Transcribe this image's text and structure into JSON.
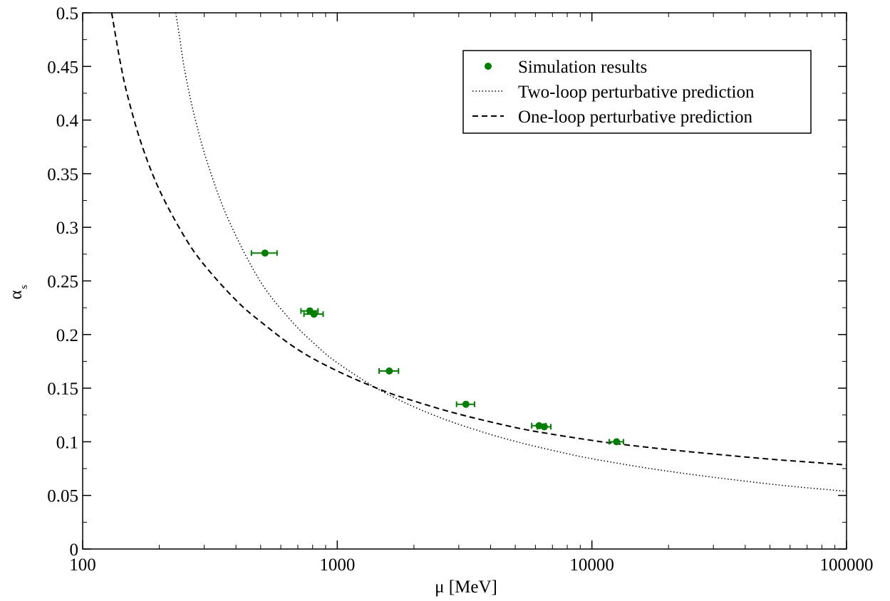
{
  "chart_data": {
    "type": "line",
    "title": "",
    "xlabel": "μ [MeV]",
    "ylabel_main": "α",
    "ylabel_sub": "s",
    "xscale": "log",
    "xlim": [
      100,
      100000
    ],
    "ylim": [
      0,
      0.5
    ],
    "xticks": [
      100,
      1000,
      10000,
      100000
    ],
    "xtick_labels": [
      "100",
      "1000",
      "10000",
      "100000"
    ],
    "yticks": [
      0,
      0.05,
      0.1,
      0.15,
      0.2,
      0.25,
      0.3,
      0.35,
      0.4,
      0.45,
      0.5
    ],
    "ytick_labels": [
      "0",
      "0.05",
      "0.1",
      "0.15",
      "0.2",
      "0.25",
      "0.3",
      "0.35",
      "0.4",
      "0.45",
      "0.5"
    ],
    "grid": false,
    "legend_position": "top-right",
    "legend": [
      {
        "label": "Simulation results",
        "style": "marker"
      },
      {
        "label": "Two-loop perturbative prediction",
        "style": "dotted"
      },
      {
        "label": "One-loop perturbative prediction",
        "style": "dashed"
      }
    ],
    "series": [
      {
        "name": "Simulation results",
        "kind": "points",
        "color": "#008000",
        "points": [
          {
            "x": 520,
            "y": 0.276,
            "xerr": 60
          },
          {
            "x": 780,
            "y": 0.222,
            "xerr": 60
          },
          {
            "x": 810,
            "y": 0.219,
            "xerr": 70
          },
          {
            "x": 1600,
            "y": 0.166,
            "xerr": 140
          },
          {
            "x": 3200,
            "y": 0.135,
            "xerr": 260
          },
          {
            "x": 6200,
            "y": 0.115,
            "xerr": 400
          },
          {
            "x": 6500,
            "y": 0.114,
            "xerr": 400
          },
          {
            "x": 12500,
            "y": 0.1,
            "xerr": 800
          }
        ]
      },
      {
        "name": "Two-loop perturbative prediction",
        "kind": "line",
        "style": "dotted",
        "color": "#000000",
        "x": [
          232,
          240,
          250,
          265,
          280,
          300,
          330,
          360,
          400,
          450,
          500,
          550,
          600,
          700,
          800,
          900,
          1000,
          1200,
          1500,
          2000,
          2500,
          3000,
          4000,
          5000,
          6000,
          8000,
          10000,
          15000,
          20000,
          30000,
          50000,
          70000,
          100000
        ],
        "y": [
          0.5,
          0.478,
          0.45,
          0.42,
          0.396,
          0.37,
          0.34,
          0.316,
          0.292,
          0.268,
          0.249,
          0.235,
          0.224,
          0.206,
          0.193,
          0.182,
          0.1737,
          0.161,
          0.147,
          0.1326,
          0.1231,
          0.1163,
          0.1068,
          0.1004,
          0.0957,
          0.0889,
          0.0842,
          0.077,
          0.0725,
          0.0669,
          0.0606,
          0.0571,
          0.0539
        ]
      },
      {
        "name": "One-loop perturbative prediction",
        "kind": "line",
        "style": "dashed",
        "color": "#000000",
        "x": [
          130,
          140,
          150,
          170,
          200,
          250,
          300,
          400,
          500,
          700,
          1000,
          1500,
          2000,
          3000,
          5000,
          7000,
          10000,
          12500,
          20000,
          30000,
          50000,
          70000,
          100000
        ],
        "y": [
          0.5,
          0.456,
          0.423,
          0.378,
          0.335,
          0.292,
          0.265,
          0.232,
          0.212,
          0.186,
          0.166,
          0.148,
          0.138,
          0.1258,
          0.1133,
          0.107,
          0.1013,
          0.0982,
          0.0927,
          0.0886,
          0.0838,
          0.0812,
          0.0784
        ]
      }
    ]
  }
}
